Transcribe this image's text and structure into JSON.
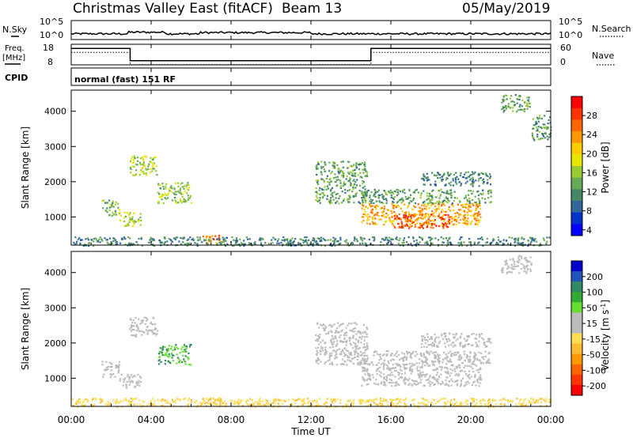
{
  "header": {
    "title": "Christmas Valley East (fitACF)",
    "beam": "Beam 13",
    "date": "05/May/2019"
  },
  "nsky_panel": {
    "left_label": "N.Sky",
    "left_ticks": [
      "10^5",
      "10^0"
    ],
    "right_ticks": [
      "10^5",
      "10^0"
    ],
    "right_label": "N.Search"
  },
  "freq_panel": {
    "left_label_line1": "Freq.",
    "left_label_line2": "[MHz]",
    "left_ticks": [
      "18",
      "8"
    ],
    "right_ticks": [
      "60",
      "0"
    ],
    "right_label": "Nave"
  },
  "cpid_panel": {
    "left_label": "CPID",
    "mode": "normal (fast) 151 RF"
  },
  "chart_data": [
    {
      "type": "heatmap",
      "name": "power-panel",
      "ylabel": "Slant Range [km]",
      "yticks": [
        "4000",
        "3000",
        "2000",
        "1000"
      ],
      "ylim": [
        200,
        4600
      ],
      "xlim": [
        0,
        24
      ],
      "colorbar": {
        "label": "Power [dB]",
        "ticks": [
          "28",
          "24",
          "20",
          "16",
          "12",
          "8",
          "4"
        ],
        "colors": [
          "#ff0000",
          "#ff3300",
          "#ff6600",
          "#ff9900",
          "#ffcc00",
          "#e6e600",
          "#99cc33",
          "#66aa55",
          "#448866",
          "#336699",
          "#0033cc",
          "#0000ff"
        ]
      },
      "regions": [
        {
          "t0": 2.9,
          "t1": 4.3,
          "r0": 2200,
          "r1": 2750,
          "level": 14
        },
        {
          "t0": 4.3,
          "t1": 6.0,
          "r0": 1400,
          "r1": 2000,
          "level": 13
        },
        {
          "t0": 1.5,
          "t1": 2.4,
          "r0": 1050,
          "r1": 1500,
          "level": 12
        },
        {
          "t0": 2.4,
          "t1": 3.5,
          "r0": 750,
          "r1": 1150,
          "level": 14
        },
        {
          "t0": 6.5,
          "t1": 7.5,
          "r0": 250,
          "r1": 500,
          "level": 24
        },
        {
          "t0": 12.2,
          "t1": 14.8,
          "r0": 1400,
          "r1": 2600,
          "level": 10
        },
        {
          "t0": 14.5,
          "t1": 20.5,
          "r0": 800,
          "r1": 1400,
          "level": 21
        },
        {
          "t0": 16.0,
          "t1": 19.0,
          "r0": 700,
          "r1": 1100,
          "level": 26
        },
        {
          "t0": 14.5,
          "t1": 21.0,
          "r0": 1400,
          "r1": 1800,
          "level": 10
        },
        {
          "t0": 17.5,
          "t1": 21.0,
          "r0": 1900,
          "r1": 2300,
          "level": 8
        },
        {
          "t0": 21.5,
          "t1": 23.0,
          "r0": 4000,
          "r1": 4500,
          "level": 10
        },
        {
          "t0": 23.0,
          "t1": 24.0,
          "r0": 3200,
          "r1": 3900,
          "level": 10
        },
        {
          "t0": 0.0,
          "t1": 24.0,
          "r0": 200,
          "r1": 450,
          "level": 8
        }
      ]
    },
    {
      "type": "heatmap",
      "name": "velocity-panel",
      "ylabel": "Slant Range [km]",
      "yticks": [
        "4000",
        "3000",
        "2000",
        "1000"
      ],
      "ylim": [
        200,
        4600
      ],
      "xlim": [
        0,
        24
      ],
      "colorbar": {
        "label": "Velocity [m s",
        "label_sup": "-1",
        "label_close": "]",
        "ticks": [
          "200",
          "100",
          "50",
          "15",
          "-15",
          "-50",
          "-100",
          "-200"
        ],
        "colors": [
          "#0000cc",
          "#2255bb",
          "#338866",
          "#33aa33",
          "#66dd33",
          "#bbbbbb",
          "#bbbbbb",
          "#ffdd55",
          "#ffbb33",
          "#ff9900",
          "#ff6600",
          "#ff3300",
          "#ff0000"
        ]
      },
      "regions": [
        {
          "t0": 2.9,
          "t1": 4.3,
          "r0": 2200,
          "r1": 2750,
          "level": 0
        },
        {
          "t0": 4.3,
          "t1": 6.0,
          "r0": 1400,
          "r1": 2000,
          "level": 40
        },
        {
          "t0": 1.5,
          "t1": 2.4,
          "r0": 1050,
          "r1": 1500,
          "level": 0
        },
        {
          "t0": 2.4,
          "t1": 3.5,
          "r0": 750,
          "r1": 1150,
          "level": 0
        },
        {
          "t0": 6.5,
          "t1": 7.5,
          "r0": 250,
          "r1": 500,
          "level": -30
        },
        {
          "t0": 12.2,
          "t1": 14.8,
          "r0": 1400,
          "r1": 2600,
          "level": 0
        },
        {
          "t0": 14.5,
          "t1": 20.5,
          "r0": 800,
          "r1": 1400,
          "level": 0
        },
        {
          "t0": 14.5,
          "t1": 21.0,
          "r0": 1400,
          "r1": 1800,
          "level": 0
        },
        {
          "t0": 17.5,
          "t1": 21.0,
          "r0": 1900,
          "r1": 2300,
          "level": 0
        },
        {
          "t0": 21.5,
          "t1": 23.0,
          "r0": 4000,
          "r1": 4500,
          "level": 0
        },
        {
          "t0": 0.0,
          "t1": 24.0,
          "r0": 200,
          "r1": 450,
          "level": -25
        }
      ]
    }
  ],
  "time_axis": {
    "ticks": [
      "00:00",
      "04:00",
      "08:00",
      "12:00",
      "16:00",
      "20:00",
      "00:00"
    ],
    "tick_hours": [
      0,
      4,
      8,
      12,
      16,
      20,
      24
    ],
    "xlabel": "Time UT"
  },
  "freq_trace": [
    {
      "t0": 0,
      "t1": 2.95,
      "f": 16.0
    },
    {
      "t0": 2.95,
      "t1": 15.0,
      "f": 10.0
    },
    {
      "t0": 15.0,
      "t1": 24,
      "f": 16.0
    }
  ]
}
